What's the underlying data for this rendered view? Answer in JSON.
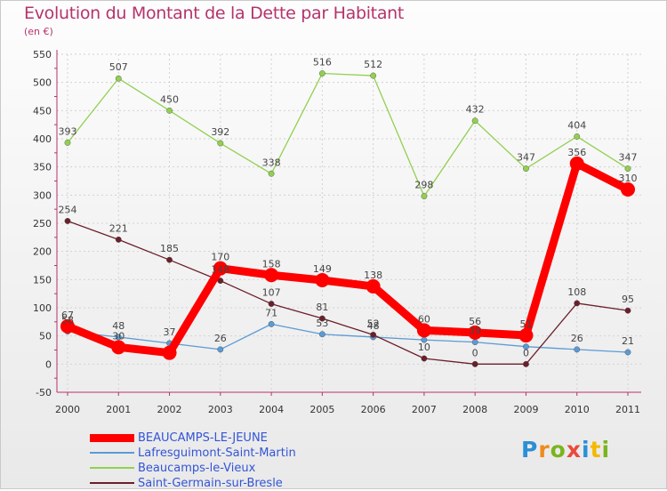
{
  "chart_data": {
    "type": "line",
    "title": "Evolution du Montant de la Dette par Habitant",
    "subtitle": "(en €)",
    "x": [
      "2000",
      "2001",
      "2002",
      "2003",
      "2004",
      "2005",
      "2006",
      "2007",
      "2008",
      "2009",
      "2010",
      "2011"
    ],
    "ylim": [
      -50,
      550
    ],
    "yticks": [
      -50,
      0,
      50,
      100,
      150,
      200,
      250,
      300,
      350,
      400,
      450,
      500,
      550
    ],
    "grid": true,
    "legend_position": "bottom-left",
    "series": [
      {
        "name": "BEAUCAMPS-LE-JEUNE",
        "values": [
          67,
          30,
          20,
          170,
          158,
          149,
          138,
          60,
          56,
          51,
          356,
          310
        ],
        "labels": [
          "67",
          "30",
          "",
          "170",
          "158",
          "149",
          "138",
          "60",
          "56",
          "51",
          "356",
          "310"
        ],
        "color": "#ff0000"
      },
      {
        "name": "Lafresguimont-Saint-Martin",
        "values": [
          58,
          48,
          37,
          26,
          71,
          53,
          48,
          43,
          39,
          31,
          26,
          21
        ],
        "labels": [
          "58",
          "48",
          "37",
          "26",
          "71",
          "53",
          "48",
          "",
          "39",
          "",
          "26",
          "21"
        ],
        "color": "#5b9bd5"
      },
      {
        "name": "Beaucamps-le-Vieux",
        "values": [
          393,
          507,
          450,
          392,
          338,
          516,
          512,
          298,
          432,
          347,
          404,
          347
        ],
        "labels": [
          "393",
          "507",
          "450",
          "392",
          "338",
          "516",
          "512",
          "298",
          "432",
          "347",
          "404",
          "347"
        ],
        "color": "#92d050"
      },
      {
        "name": "Saint-Germain-sur-Bresle",
        "values": [
          254,
          221,
          185,
          148,
          107,
          81,
          52,
          10,
          0,
          0,
          108,
          95
        ],
        "labels": [
          "254",
          "221",
          "185",
          "148",
          "107",
          "81",
          "52",
          "10",
          "0",
          "0",
          "108",
          "95"
        ],
        "color": "#6b1f2a"
      }
    ]
  },
  "logo": {
    "letters": [
      "P",
      "r",
      "o",
      "x",
      "i",
      "t",
      "i"
    ]
  }
}
